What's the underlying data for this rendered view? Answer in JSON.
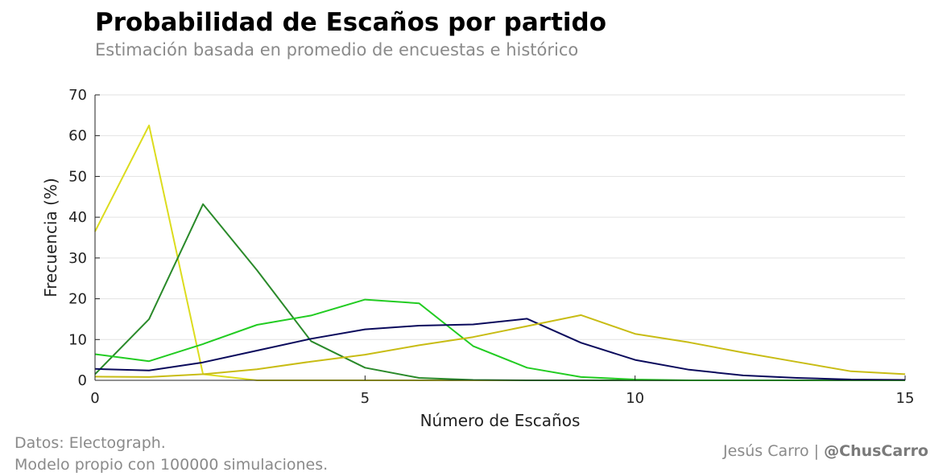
{
  "header": {
    "title": "Probabilidad de Escaños por partido",
    "subtitle": "Estimación basada en promedio de encuestas e histórico"
  },
  "footer": {
    "source_line1": "Datos: Electograph.",
    "source_line2": "Modelo propio con 100000 simulaciones.",
    "author": "Jesús Carro |",
    "handle": "@ChusCarro"
  },
  "chart_data": {
    "type": "line",
    "title": "Probabilidad de Escaños por partido",
    "subtitle": "Estimación basada en promedio de encuestas e histórico",
    "xlabel": "Número de Escaños",
    "ylabel": "Frecuencia (%)",
    "xlim": [
      0,
      15
    ],
    "ylim": [
      0,
      70
    ],
    "xticks": [
      0,
      5,
      10,
      15
    ],
    "yticks": [
      0,
      10,
      20,
      30,
      40,
      50,
      60,
      70
    ],
    "grid": "horizontal",
    "legend": "none",
    "series": [
      {
        "color": "#dcdc1e",
        "x": [
          0,
          1,
          2,
          3,
          4,
          5,
          6,
          7,
          8,
          9,
          10,
          11,
          12,
          13,
          14,
          15
        ],
        "values": [
          36.5,
          62.5,
          1.5,
          0,
          0,
          0,
          0,
          0,
          0,
          0,
          0,
          0,
          0,
          0,
          0,
          0
        ]
      },
      {
        "color": "#2a8a2a",
        "x": [
          0,
          1,
          2,
          3,
          4,
          5,
          6,
          7,
          8,
          9,
          10,
          11,
          12,
          13,
          14,
          15
        ],
        "values": [
          1.5,
          15,
          43.2,
          27,
          9.6,
          3.1,
          0.6,
          0.1,
          0,
          0,
          0,
          0,
          0,
          0,
          0,
          0
        ]
      },
      {
        "color": "#22cc22",
        "x": [
          0,
          1,
          2,
          3,
          4,
          5,
          6,
          7,
          8,
          9,
          10,
          11,
          12,
          13,
          14,
          15
        ],
        "values": [
          6.4,
          4.7,
          8.9,
          13.6,
          15.9,
          19.8,
          18.9,
          8.4,
          3.1,
          0.8,
          0.2,
          0,
          0,
          0,
          0,
          0
        ]
      },
      {
        "color": "#0a0a5c",
        "x": [
          0,
          1,
          2,
          3,
          4,
          5,
          6,
          7,
          8,
          9,
          10,
          11,
          12,
          13,
          14,
          15
        ],
        "values": [
          2.8,
          2.4,
          4.4,
          7.3,
          10.2,
          12.5,
          13.4,
          13.7,
          15.1,
          9.2,
          5,
          2.6,
          1.2,
          0.6,
          0.2,
          0.1
        ]
      },
      {
        "color": "#c8bc14",
        "x": [
          0,
          1,
          2,
          3,
          4,
          5,
          6,
          7,
          8,
          9,
          10,
          11,
          12,
          13,
          14,
          15
        ],
        "values": [
          0.9,
          0.8,
          1.5,
          2.7,
          4.6,
          6.3,
          8.6,
          10.6,
          13.3,
          16,
          11.4,
          9.3,
          6.8,
          4.5,
          2.2,
          1.5
        ]
      }
    ]
  }
}
